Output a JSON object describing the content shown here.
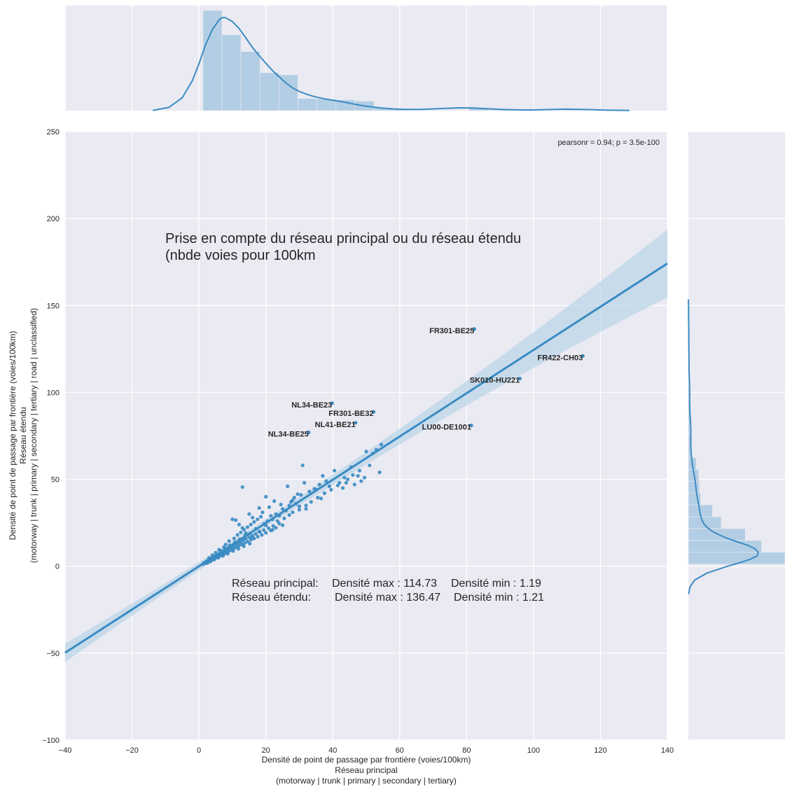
{
  "chart_data": {
    "type": "scatter",
    "subtype": "jointplot-regression",
    "title": "",
    "xlabel": [
      "Densité de point de passage par frontière (voies/100km)",
      "Réseau principal",
      "(motorway | trunk | primary | secondary | tertiary)"
    ],
    "ylabel": [
      "Densité de point de passage par frontière (voies/100km)",
      "Réseau étendu",
      "(motorway | trunk | primary | secondary | tertiary | road | unclassified)"
    ],
    "xlim": [
      -40,
      140
    ],
    "ylim": [
      -100,
      250
    ],
    "xticks": [
      -40,
      -20,
      0,
      20,
      40,
      60,
      80,
      100,
      120,
      140
    ],
    "yticks": [
      -100,
      -50,
      0,
      50,
      100,
      150,
      200,
      250
    ],
    "xtick_labels": [
      "−40",
      "−20",
      "0",
      "20",
      "40",
      "60",
      "80",
      "100",
      "120",
      "140"
    ],
    "ytick_labels": [
      "−100",
      "−50",
      "0",
      "50",
      "100",
      "150",
      "200",
      "250"
    ],
    "grid": true,
    "colors": {
      "point": "#3a8bc2",
      "line": "#3a8bc2",
      "band": "#bcd5e8",
      "hist": "#a9c9e2",
      "panel": "#eaeaf2",
      "grid": "#ffffff"
    },
    "stats_annotation": "pearsonr = 0.94; p = 3.5e-100",
    "annotation_main": [
      "Prise en compte du réseau principal ou du réseau étendu",
      "(nbde voies pour 100km"
    ],
    "annotation_density": [
      [
        "Réseau principal:",
        "Densité max : 114.73",
        "Densité min : 1.19"
      ],
      [
        "Réseau étendu:",
        "Densité max : 136.47",
        "Densité min : 1.21"
      ]
    ],
    "regression": {
      "slope": 1.244,
      "intercept": 0.0
    },
    "labeled_points": [
      {
        "label": "FR301-BE25",
        "x": 82.3,
        "y": 136.47
      },
      {
        "label": "FR422-CH03",
        "x": 114.73,
        "y": 121.0
      },
      {
        "label": "SK010-HU221",
        "x": 95.9,
        "y": 108.0
      },
      {
        "label": "NL34-BE23",
        "x": 39.8,
        "y": 93.8
      },
      {
        "label": "FR301-BE32",
        "x": 52.2,
        "y": 88.8
      },
      {
        "label": "NL41-BE21",
        "x": 46.8,
        "y": 82.5
      },
      {
        "label": "LU00-DE1001",
        "x": 81.4,
        "y": 81.0
      },
      {
        "label": "NL34-BE25",
        "x": 32.8,
        "y": 77.0
      }
    ],
    "points": [
      [
        1.2,
        1.2
      ],
      [
        1.5,
        2.0
      ],
      [
        1.9,
        1.8
      ],
      [
        2.1,
        2.6
      ],
      [
        2.4,
        3.1
      ],
      [
        2.7,
        2.4
      ],
      [
        3.0,
        3.5
      ],
      [
        3.2,
        4.1
      ],
      [
        3.5,
        3.2
      ],
      [
        3.7,
        4.4
      ],
      [
        4.0,
        5.0
      ],
      [
        4.2,
        3.8
      ],
      [
        4.5,
        5.4
      ],
      [
        4.8,
        4.6
      ],
      [
        5.0,
        6.0
      ],
      [
        5.3,
        5.1
      ],
      [
        5.6,
        6.6
      ],
      [
        5.9,
        5.6
      ],
      [
        6.2,
        7.2
      ],
      [
        6.5,
        6.1
      ],
      [
        6.8,
        7.9
      ],
      [
        7.0,
        6.8
      ],
      [
        7.3,
        8.5
      ],
      [
        7.6,
        7.3
      ],
      [
        7.9,
        9.1
      ],
      [
        8.2,
        8.0
      ],
      [
        8.5,
        9.8
      ],
      [
        8.8,
        8.6
      ],
      [
        9.1,
        10.5
      ],
      [
        9.4,
        9.2
      ],
      [
        9.7,
        11.1
      ],
      [
        10.0,
        9.9
      ],
      [
        10.3,
        11.8
      ],
      [
        10.6,
        10.4
      ],
      [
        11.0,
        12.6
      ],
      [
        11.3,
        11.1
      ],
      [
        11.7,
        13.4
      ],
      [
        12.0,
        11.9
      ],
      [
        12.4,
        14.0
      ],
      [
        12.8,
        12.6
      ],
      [
        13.2,
        14.9
      ],
      [
        13.6,
        13.3
      ],
      [
        14.0,
        15.8
      ],
      [
        14.5,
        14.1
      ],
      [
        15.0,
        16.7
      ],
      [
        15.5,
        15.2
      ],
      [
        16.0,
        17.6
      ],
      [
        16.5,
        16.0
      ],
      [
        17.0,
        18.6
      ],
      [
        17.6,
        17.0
      ],
      [
        18.2,
        19.7
      ],
      [
        18.8,
        18.0
      ],
      [
        19.4,
        20.8
      ],
      [
        20.0,
        19.2
      ],
      [
        20.8,
        21.9
      ],
      [
        21.5,
        20.6
      ],
      [
        22.2,
        23.2
      ],
      [
        23.0,
        22.1
      ],
      [
        24.0,
        24.5
      ],
      [
        25.0,
        23.6
      ],
      [
        6.0,
        9.5
      ],
      [
        7.5,
        11.0
      ],
      [
        8.0,
        12.5
      ],
      [
        9.0,
        14.5
      ],
      [
        10.5,
        16.0
      ],
      [
        11.5,
        18.0
      ],
      [
        12.5,
        19.5
      ],
      [
        13.5,
        21.0
      ],
      [
        14.5,
        22.5
      ],
      [
        15.5,
        24.0
      ],
      [
        11.0,
        26.5
      ],
      [
        12.0,
        24.0
      ],
      [
        13.0,
        22.0
      ],
      [
        16.5,
        25.5
      ],
      [
        17.5,
        27.0
      ],
      [
        18.5,
        28.5
      ],
      [
        19.5,
        24.5
      ],
      [
        20.5,
        26.0
      ],
      [
        21.5,
        29.0
      ],
      [
        10.0,
        27.0
      ],
      [
        13.0,
        45.5
      ],
      [
        15.0,
        30.0
      ],
      [
        16.0,
        28.0
      ],
      [
        19.0,
        31.0
      ],
      [
        20.0,
        40.0
      ],
      [
        21.0,
        34.0
      ],
      [
        22.0,
        27.0
      ],
      [
        23.0,
        30.0
      ],
      [
        24.0,
        29.0
      ],
      [
        25.0,
        33.0
      ],
      [
        26.0,
        32.0
      ],
      [
        27.0,
        35.0
      ],
      [
        28.0,
        38.0
      ],
      [
        29.0,
        36.0
      ],
      [
        30.0,
        34.5
      ],
      [
        31.0,
        58.0
      ],
      [
        32.0,
        33.0
      ],
      [
        26.5,
        46.0
      ],
      [
        27.5,
        37.0
      ],
      [
        28.5,
        39.5
      ],
      [
        30.5,
        41.0
      ],
      [
        31.5,
        48.0
      ],
      [
        33.0,
        43.0
      ],
      [
        34.5,
        44.5
      ],
      [
        36.0,
        47.0
      ],
      [
        37.0,
        52.0
      ],
      [
        38.0,
        49.0
      ],
      [
        39.0,
        46.0
      ],
      [
        40.5,
        55.0
      ],
      [
        42.0,
        48.0
      ],
      [
        43.5,
        51.0
      ],
      [
        44.5,
        50.0
      ],
      [
        45.5,
        57.0
      ],
      [
        46.5,
        47.0
      ],
      [
        47.5,
        52.0
      ],
      [
        48.5,
        49.0
      ],
      [
        49.5,
        51.0
      ],
      [
        50.0,
        66.0
      ],
      [
        51.0,
        58.0
      ],
      [
        52.0,
        65.0
      ],
      [
        53.0,
        67.0
      ],
      [
        54.0,
        54.0
      ],
      [
        54.5,
        70.0
      ],
      [
        36.5,
        39.0
      ],
      [
        35.0,
        44.0
      ],
      [
        29.5,
        41.5
      ],
      [
        24.5,
        35.5
      ],
      [
        22.5,
        37.5
      ],
      [
        18.0,
        33.5
      ],
      [
        17.0,
        21.5
      ],
      [
        14.0,
        19.0
      ],
      [
        16.0,
        16.5
      ],
      [
        18.0,
        20.0
      ],
      [
        20.0,
        23.5
      ],
      [
        22.0,
        21.0
      ],
      [
        23.5,
        26.0
      ],
      [
        25.5,
        27.5
      ],
      [
        27.0,
        29.5
      ],
      [
        28.0,
        31.0
      ],
      [
        30.0,
        32.5
      ],
      [
        32.0,
        35.0
      ],
      [
        33.5,
        37.0
      ],
      [
        35.5,
        39.5
      ],
      [
        37.5,
        42.0
      ],
      [
        39.5,
        44.0
      ],
      [
        41.5,
        46.5
      ],
      [
        43.0,
        45.0
      ],
      [
        44.0,
        48.0
      ],
      [
        46.0,
        52.5
      ],
      [
        48.0,
        55.0
      ],
      [
        3.0,
        4.8
      ],
      [
        4.0,
        6.4
      ],
      [
        5.0,
        7.8
      ],
      [
        6.5,
        9.0
      ],
      [
        7.8,
        10.2
      ],
      [
        9.2,
        12.0
      ],
      [
        10.8,
        13.8
      ],
      [
        12.2,
        15.5
      ],
      [
        13.8,
        17.5
      ],
      [
        15.2,
        18.8
      ],
      [
        2.5,
        1.9
      ],
      [
        3.4,
        2.8
      ],
      [
        4.6,
        3.9
      ],
      [
        5.8,
        4.9
      ],
      [
        7.2,
        6.0
      ],
      [
        8.6,
        7.2
      ],
      [
        10.2,
        8.8
      ],
      [
        11.8,
        10.0
      ],
      [
        13.4,
        11.5
      ],
      [
        15.2,
        13.0
      ]
    ],
    "x_hist": {
      "bin_edges": [
        1.19,
        6.87,
        12.55,
        18.23,
        23.91,
        29.59,
        35.27,
        40.95,
        46.63,
        52.31,
        57.99,
        63.67,
        69.35,
        75.03,
        80.71,
        86.39,
        92.07,
        97.75,
        103.43,
        109.11,
        114.79
      ],
      "density": [
        0.047,
        0.0356,
        0.0277,
        0.0178,
        0.0168,
        0.0057,
        0.0054,
        0.005,
        0.0045,
        0.0014,
        0.0006,
        0.0002,
        0.0002,
        0.0002,
        0.0013,
        0.0003,
        0.0003,
        0.0002,
        0.0002,
        0.0003
      ]
    },
    "x_kde": {
      "x": [
        -13.8,
        -9,
        -5,
        -2,
        0,
        2,
        4,
        6,
        7,
        8,
        10,
        12,
        14,
        16,
        18,
        20,
        22,
        24,
        26,
        28,
        30,
        32,
        34,
        36,
        38,
        40,
        42,
        44,
        46,
        48,
        50,
        54,
        58,
        62,
        66,
        70,
        74,
        78,
        82,
        86,
        90,
        94,
        98,
        102,
        106,
        110,
        114,
        118,
        122,
        128.7
      ],
      "y": [
        0.0001,
        0.0015,
        0.006,
        0.014,
        0.022,
        0.031,
        0.038,
        0.0426,
        0.0437,
        0.0436,
        0.0418,
        0.0386,
        0.0342,
        0.0296,
        0.0258,
        0.0222,
        0.0188,
        0.0158,
        0.013,
        0.0106,
        0.009,
        0.0078,
        0.0068,
        0.006,
        0.0054,
        0.0049,
        0.0044,
        0.0038,
        0.0032,
        0.0026,
        0.0021,
        0.0013,
        0.0008,
        0.0006,
        0.0006,
        0.0008,
        0.0011,
        0.0013,
        0.0012,
        0.0009,
        0.0006,
        0.0004,
        0.0003,
        0.0004,
        0.0006,
        0.0007,
        0.0006,
        0.0004,
        0.0002,
        0.0001
      ]
    },
    "y_hist": {
      "bin_edges": [
        1.21,
        8.02,
        14.84,
        21.65,
        28.47,
        35.28,
        42.1,
        48.91,
        55.73,
        62.54,
        69.36,
        76.17,
        82.99,
        89.8,
        96.62,
        103.43,
        110.25,
        117.06,
        123.88,
        130.69,
        137.51
      ],
      "density": [
        0.047,
        0.0356,
        0.0277,
        0.016,
        0.0117,
        0.006,
        0.0054,
        0.005,
        0.0038,
        0.0014,
        0.0014,
        0.0008,
        0.001,
        0.001,
        0.0006,
        0.0,
        0.0,
        0.0,
        0.0,
        0.0
      ]
    },
    "y_kde": {
      "y": [
        -16,
        -12,
        -8,
        -4,
        0,
        2,
        4,
        6,
        8,
        10,
        12,
        14,
        16,
        18,
        20,
        22,
        24,
        26,
        28,
        30,
        34,
        38,
        42,
        46,
        50,
        54,
        58,
        62,
        66,
        70,
        74,
        78,
        82,
        86,
        90,
        94,
        98,
        102,
        106,
        110,
        114,
        118,
        122,
        126,
        130,
        134,
        138,
        142,
        146,
        150,
        153.5
      ],
      "v": [
        0.0001,
        0.0008,
        0.003,
        0.009,
        0.019,
        0.025,
        0.03,
        0.0335,
        0.034,
        0.0325,
        0.029,
        0.024,
        0.019,
        0.015,
        0.0118,
        0.0094,
        0.0078,
        0.0068,
        0.0062,
        0.0058,
        0.0052,
        0.0046,
        0.004,
        0.0036,
        0.0032,
        0.0026,
        0.002,
        0.0016,
        0.0013,
        0.0012,
        0.0012,
        0.0012,
        0.0011,
        0.0009,
        0.0007,
        0.0006,
        0.0006,
        0.0006,
        0.0005,
        0.0004,
        0.0003,
        0.0003,
        0.0003,
        0.0002,
        0.0002,
        0.0002,
        0.0002,
        0.0001,
        0.0001,
        0.0001,
        0.0
      ]
    }
  }
}
